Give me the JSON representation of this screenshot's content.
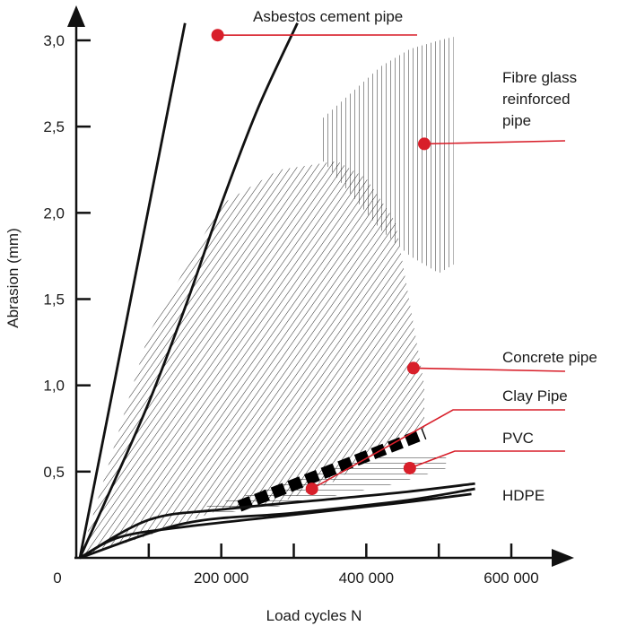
{
  "chart_data": {
    "type": "line",
    "title": "",
    "xlabel": "Load cycles N",
    "ylabel": "Abrasion (mm)",
    "xlim": [
      0,
      600000
    ],
    "ylim": [
      0,
      3.0
    ],
    "grid": false,
    "accent_color": "#d81f2a",
    "line_color": "#111111",
    "x_origin_label": "0",
    "x_ticks": [
      {
        "value": 200000,
        "label": "200 000"
      },
      {
        "value": 400000,
        "label": "400 000"
      },
      {
        "value": 600000,
        "label": "600 000"
      }
    ],
    "y_ticks": [
      {
        "value": 0.5,
        "label": "0,5"
      },
      {
        "value": 1.0,
        "label": "1,0"
      },
      {
        "value": 1.5,
        "label": "1,5"
      },
      {
        "value": 2.0,
        "label": "2,0"
      },
      {
        "value": 2.5,
        "label": "2,5"
      },
      {
        "value": 3.0,
        "label": "3,0"
      }
    ],
    "series": [
      {
        "name": "Asbestos cement pipe",
        "style": "line",
        "color": "#111111",
        "x": [
          5000,
          150000
        ],
        "y": [
          0,
          3.1
        ],
        "marker": {
          "x": 195000,
          "y": 3.03
        }
      },
      {
        "name": "Asbestos cement pipe",
        "style": "curve",
        "color": "#111111",
        "x": [
          5000,
          50000,
          100000,
          150000,
          200000,
          250000,
          305000
        ],
        "y": [
          0,
          0.42,
          0.9,
          1.45,
          2.05,
          2.6,
          3.1
        ]
      },
      {
        "name": "Fibre glass reinforced pipe",
        "style": "band-vertical-hatch",
        "color": "#111111",
        "x": [
          340000,
          380000,
          420000,
          460000,
          500000,
          520000
        ],
        "y_low": [
          2.3,
          2.1,
          1.9,
          1.75,
          1.65,
          1.7
        ],
        "y_high": [
          2.55,
          2.7,
          2.85,
          2.95,
          3.0,
          3.02
        ],
        "marker": {
          "x": 480000,
          "y": 2.4
        }
      },
      {
        "name": "Concrete pipe",
        "style": "band-diagonal-hatch",
        "color": "#111111",
        "x": [
          5000,
          100000,
          200000,
          280000,
          360000,
          400000,
          440000,
          480000
        ],
        "y_low": [
          0,
          0.13,
          0.28,
          0.32,
          0.45,
          0.58,
          0.68,
          0.75
        ],
        "y_high": [
          0,
          1.3,
          2.05,
          2.25,
          2.3,
          2.2,
          1.95,
          1.0
        ],
        "marker": {
          "x": 465000,
          "y": 1.1
        }
      },
      {
        "name": "Clay Pipe",
        "style": "dashed-thick",
        "color": "#000000",
        "x": [
          225000,
          480000
        ],
        "y": [
          0.3,
          0.72
        ],
        "marker": {
          "x": 325000,
          "y": 0.4
        }
      },
      {
        "name": "PVC",
        "style": "band-horizontal-hatch",
        "color": "#111111",
        "x": [
          180000,
          280000,
          380000,
          440000,
          510000
        ],
        "y_low": [
          0.25,
          0.3,
          0.38,
          0.43,
          0.52
        ],
        "y_high": [
          0.3,
          0.42,
          0.55,
          0.6,
          0.6
        ],
        "marker": {
          "x": 460000,
          "y": 0.52
        }
      },
      {
        "name": "HDPE",
        "style": "curves",
        "color": "#111111",
        "curves": [
          {
            "x": [
              5000,
              60000,
              150000,
              300000,
              450000,
              545000
            ],
            "y": [
              0,
              0.12,
              0.18,
              0.25,
              0.32,
              0.37
            ]
          },
          {
            "x": [
              5000,
              100000,
              200000,
              350000,
              450000,
              550000
            ],
            "y": [
              0,
              0.22,
              0.28,
              0.34,
              0.38,
              0.43
            ]
          },
          {
            "x": [
              5000,
              150000,
              300000,
              450000,
              550000
            ],
            "y": [
              0,
              0.2,
              0.26,
              0.33,
              0.4
            ]
          }
        ]
      }
    ],
    "callouts": [
      {
        "series": "Asbestos cement pipe",
        "label": "Asbestos cement pipe",
        "anchor": {
          "x": 195000,
          "y": 3.03
        },
        "text_position": "above-line-end"
      },
      {
        "series": "Fibre glass reinforced pipe",
        "label_lines": [
          "Fibre glass",
          "reinforced",
          "pipe"
        ],
        "anchor": {
          "x": 480000,
          "y": 2.4
        }
      },
      {
        "series": "Concrete pipe",
        "label": "Concrete pipe",
        "anchor": {
          "x": 465000,
          "y": 1.1
        }
      },
      {
        "series": "Clay Pipe",
        "label": "Clay Pipe",
        "anchor": {
          "x": 325000,
          "y": 0.4
        }
      },
      {
        "series": "PVC",
        "label": "PVC",
        "anchor": {
          "x": 460000,
          "y": 0.52
        }
      },
      {
        "series": "HDPE",
        "label": "HDPE",
        "anchor": null
      }
    ]
  }
}
